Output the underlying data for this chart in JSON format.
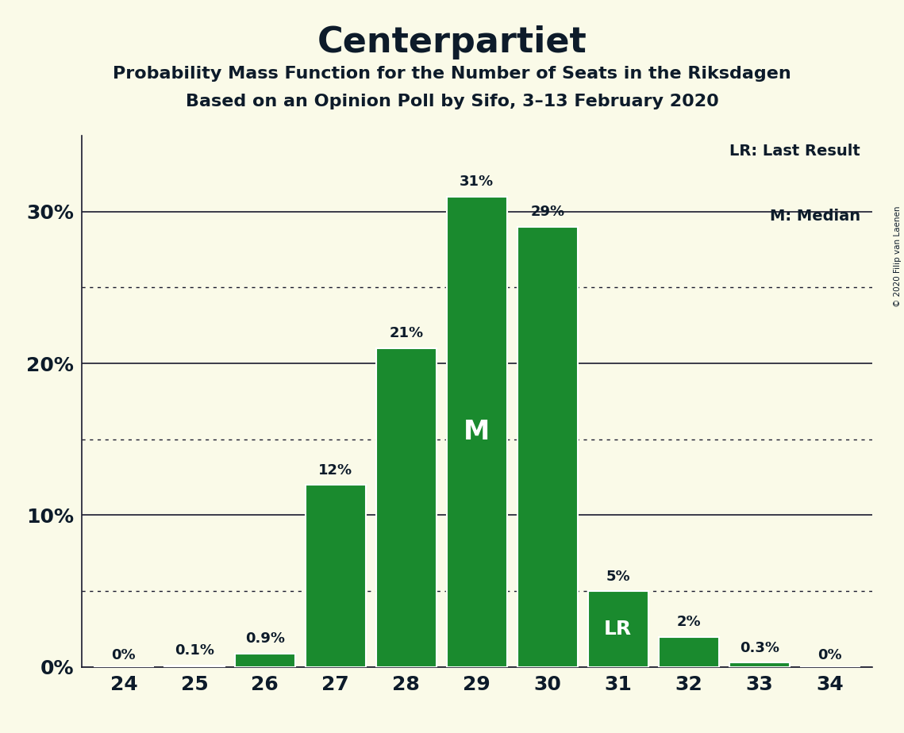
{
  "title": "Centerpartiet",
  "subtitle1": "Probability Mass Function for the Number of Seats in the Riksdagen",
  "subtitle2": "Based on an Opinion Poll by Sifo, 3–13 February 2020",
  "copyright": "© 2020 Filip van Laenen",
  "seats": [
    24,
    25,
    26,
    27,
    28,
    29,
    30,
    31,
    32,
    33,
    34
  ],
  "values": [
    0.0,
    0.1,
    0.9,
    12.0,
    21.0,
    31.0,
    29.0,
    5.0,
    2.0,
    0.3,
    0.0
  ],
  "labels": [
    "0%",
    "0.1%",
    "0.9%",
    "12%",
    "21%",
    "31%",
    "29%",
    "5%",
    "2%",
    "0.3%",
    "0%"
  ],
  "bar_color": "#1a8a2e",
  "background_color": "#fafae8",
  "text_color": "#0d1b2a",
  "white_text": "#ffffff",
  "median_seat": 29,
  "lr_seat": 31,
  "ylim": [
    0,
    35
  ],
  "yticks": [
    0,
    10,
    20,
    30
  ],
  "ytick_labels": [
    "0%",
    "10%",
    "20%",
    "30%"
  ],
  "grid_color": "#1a1a2e",
  "dotted_grid_values": [
    5,
    15,
    25
  ],
  "legend_lr": "LR: Last Result",
  "legend_m": "M: Median"
}
